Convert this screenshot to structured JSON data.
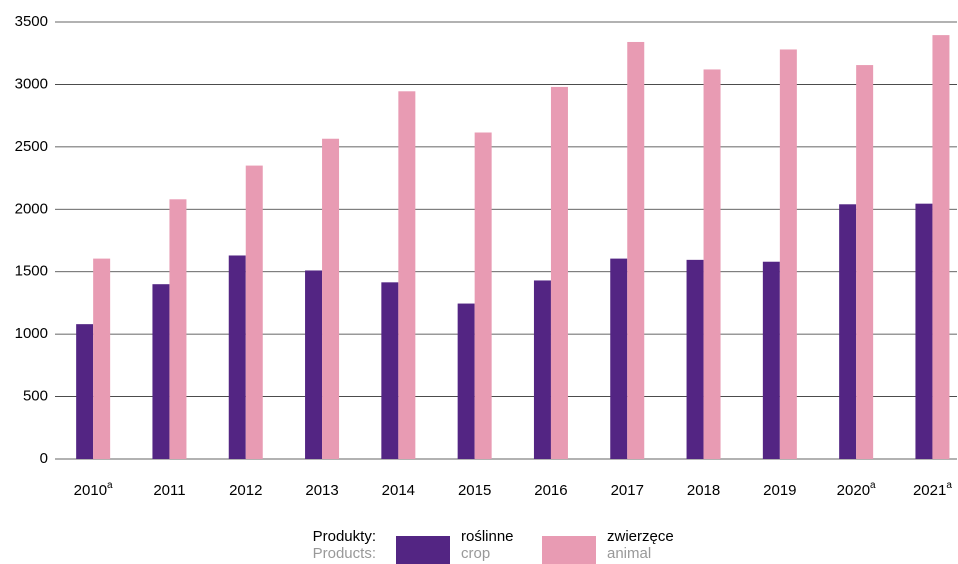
{
  "chart_data": {
    "type": "bar",
    "categories": [
      "2010",
      "2011",
      "2012",
      "2013",
      "2014",
      "2015",
      "2016",
      "2017",
      "2018",
      "2019",
      "2020",
      "2021"
    ],
    "category_footnotes": [
      "a",
      null,
      null,
      null,
      null,
      null,
      null,
      null,
      null,
      null,
      "a",
      "a"
    ],
    "series": [
      {
        "name": "roślinne",
        "name_en": "crop",
        "color": "#532583",
        "values": [
          1080,
          1400,
          1630,
          1510,
          1415,
          1245,
          1430,
          1605,
          1595,
          1580,
          2040,
          2045
        ]
      },
      {
        "name": "zwierzęce",
        "name_en": "animal",
        "color": "#e89bb3",
        "values": [
          1605,
          2080,
          2350,
          2565,
          2945,
          2615,
          2980,
          3340,
          3120,
          3280,
          3155,
          3395
        ]
      }
    ],
    "legend_title": "Produkty:",
    "legend_title_en": "Products:",
    "ylim": [
      0,
      3500
    ],
    "yticks": [
      0,
      500,
      1000,
      1500,
      2000,
      2500,
      3000,
      3500
    ],
    "grid": true
  }
}
